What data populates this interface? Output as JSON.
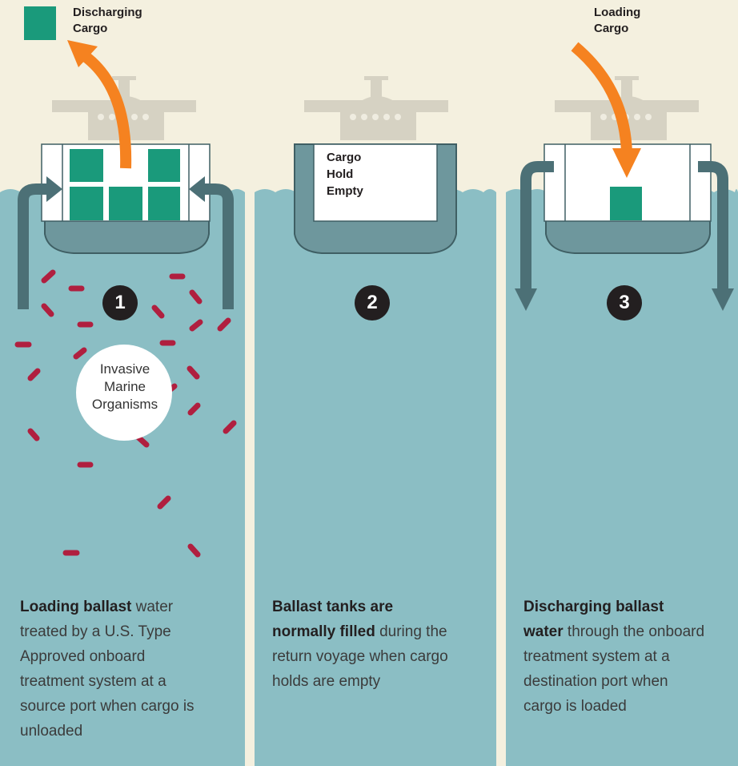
{
  "legend": {
    "discharging": [
      "Discharging",
      "Cargo"
    ],
    "loading": [
      "Loading",
      "Cargo"
    ]
  },
  "hold_label": [
    "Cargo",
    "Hold",
    "Empty"
  ],
  "organisms_label": [
    "Invasive",
    "Marine",
    "Organisms"
  ],
  "panels": [
    {
      "number": "1",
      "caption": {
        "bold": "Loading ballast",
        "text": " water treated by a U.S. Type Approved onboard treatment system at a source port when cargo is unloaded"
      }
    },
    {
      "number": "2",
      "caption": {
        "bold": "Ballast tanks are normally filled",
        "text": " during the return voyage when cargo holds are empty"
      }
    },
    {
      "number": "3",
      "caption": {
        "bold": "Discharging ballast water",
        "text": " through the onboard treatment system at a destination port when cargo is loaded"
      }
    }
  ]
}
